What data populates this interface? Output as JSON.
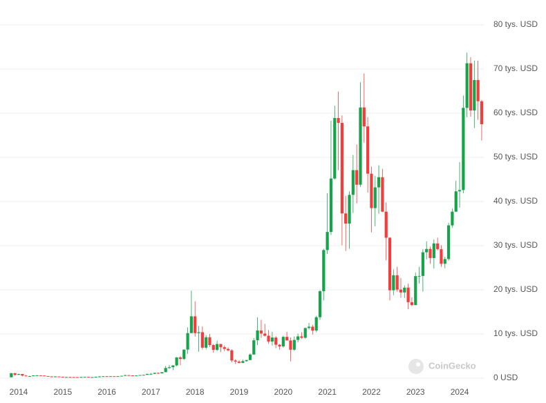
{
  "chart_data": {
    "type": "candlestick",
    "categories": [
      null,
      null,
      "2014",
      null,
      null,
      null,
      null,
      null,
      null,
      null,
      null,
      null,
      null,
      null,
      "2015",
      null,
      null,
      null,
      null,
      null,
      null,
      null,
      null,
      null,
      null,
      null,
      "2016",
      null,
      null,
      null,
      null,
      null,
      null,
      null,
      null,
      null,
      null,
      null,
      "2017",
      null,
      null,
      null,
      null,
      null,
      null,
      null,
      null,
      null,
      null,
      null,
      "2018",
      null,
      null,
      null,
      null,
      null,
      null,
      null,
      null,
      null,
      null,
      null,
      "2019",
      null,
      null,
      null,
      null,
      null,
      null,
      null,
      null,
      null,
      null,
      null,
      "2020",
      null,
      null,
      null,
      null,
      null,
      null,
      null,
      null,
      null,
      null,
      null,
      "2021",
      null,
      null,
      null,
      null,
      null,
      null,
      null,
      null,
      null,
      null,
      null,
      "2022",
      null,
      null,
      null,
      null,
      null,
      null,
      null,
      null,
      null,
      null,
      null,
      "2023",
      null,
      null,
      null,
      null,
      null,
      null,
      null,
      null,
      null,
      null,
      null,
      "2024",
      null,
      null,
      null,
      null,
      null,
      null
    ],
    "open": [
      200,
      1130,
      750,
      935,
      570,
      450,
      450,
      630,
      640,
      590,
      480,
      390,
      340,
      380,
      320,
      220,
      250,
      245,
      235,
      230,
      265,
      285,
      230,
      237,
      315,
      378,
      430,
      370,
      437,
      416,
      448,
      531,
      673,
      624,
      575,
      609,
      700,
      742,
      964,
      970,
      1190,
      1080,
      1350,
      2300,
      2480,
      2875,
      4700,
      4340,
      6470,
      10200,
      14000,
      10200,
      10400,
      6900,
      9250,
      7500,
      6400,
      7730,
      7000,
      6625,
      6300,
      4000,
      3740,
      3460,
      3850,
      4100,
      5350,
      8570,
      10800,
      10100,
      9600,
      8300,
      9200,
      7570,
      7190,
      9350,
      8540,
      6440,
      8660,
      9460,
      9140,
      11350,
      11650,
      10780,
      13800,
      19700,
      29000,
      33100,
      45200,
      58900,
      57800,
      37300,
      35000,
      41500,
      47100,
      43800,
      61300,
      57000,
      46300,
      38500,
      43200,
      45500,
      37700,
      31800,
      19900,
      23300,
      20050,
      19400,
      20500,
      17200,
      16550,
      23100,
      23150,
      28500,
      29250,
      27200,
      30500,
      29200,
      25900,
      26970,
      34600,
      37700,
      42300,
      42600,
      61200,
      71300,
      60600,
      67500,
      62700
    ],
    "high": [
      1160,
      1160,
      1000,
      940,
      720,
      540,
      630,
      680,
      650,
      600,
      490,
      420,
      460,
      390,
      320,
      270,
      300,
      260,
      250,
      270,
      320,
      285,
      245,
      335,
      500,
      470,
      460,
      440,
      440,
      470,
      550,
      780,
      700,
      630,
      620,
      720,
      760,
      970,
      1160,
      1210,
      1290,
      1350,
      2760,
      3000,
      2950,
      4750,
      5000,
      6470,
      11500,
      19800,
      17400,
      11800,
      11700,
      9750,
      10000,
      7750,
      8500,
      7760,
      7400,
      7000,
      6550,
      4300,
      4100,
      4200,
      4150,
      5600,
      9100,
      13800,
      13200,
      12300,
      10900,
      10500,
      9500,
      7700,
      9600,
      10500,
      9200,
      9450,
      10100,
      10400,
      11450,
      12500,
      12100,
      14100,
      19900,
      29300,
      41900,
      58300,
      61700,
      64900,
      59500,
      41300,
      42300,
      50500,
      52900,
      67000,
      69000,
      59100,
      47900,
      45800,
      48200,
      47400,
      39800,
      31900,
      24600,
      25200,
      22700,
      21000,
      21400,
      18300,
      23900,
      25200,
      29200,
      31000,
      29800,
      31400,
      31800,
      30100,
      27500,
      35200,
      38400,
      44700,
      48900,
      64000,
      73700,
      72700,
      71900,
      71900,
      63000
    ],
    "low": [
      200,
      520,
      730,
      420,
      440,
      340,
      440,
      560,
      570,
      450,
      360,
      280,
      320,
      310,
      170,
      210,
      240,
      215,
      225,
      220,
      255,
      200,
      225,
      235,
      315,
      350,
      360,
      370,
      400,
      410,
      440,
      530,
      610,
      530,
      570,
      600,
      690,
      740,
      750,
      920,
      900,
      1060,
      1350,
      2100,
      1800,
      2700,
      2950,
      4150,
      5500,
      10200,
      9400,
      6000,
      6500,
      6500,
      7050,
      5750,
      6100,
      5900,
      6100,
      6100,
      3600,
      3200,
      3350,
      3400,
      3730,
      4080,
      5350,
      7500,
      9100,
      9400,
      7800,
      7400,
      6800,
      6450,
      6900,
      8500,
      3800,
      6200,
      8100,
      8900,
      8950,
      11000,
      9900,
      10400,
      13200,
      17600,
      28100,
      32400,
      45000,
      47100,
      30100,
      28800,
      29300,
      37400,
      39600,
      43300,
      53300,
      42000,
      33000,
      34400,
      37200,
      37600,
      26700,
      17600,
      18800,
      19600,
      18200,
      18200,
      15600,
      16300,
      16500,
      21400,
      19600,
      26900,
      25900,
      24800,
      28900,
      25200,
      24900,
      26600,
      34100,
      37600,
      38600,
      41900,
      59100,
      59200,
      56600,
      58500,
      53800
    ],
    "close": [
      1130,
      750,
      935,
      570,
      450,
      450,
      630,
      640,
      590,
      480,
      390,
      340,
      380,
      320,
      220,
      250,
      245,
      235,
      230,
      265,
      285,
      230,
      237,
      315,
      378,
      430,
      370,
      437,
      416,
      448,
      531,
      673,
      624,
      575,
      609,
      700,
      742,
      964,
      970,
      1190,
      1080,
      1350,
      2300,
      2480,
      2875,
      4700,
      4340,
      6470,
      10200,
      14000,
      10200,
      10400,
      6900,
      9250,
      7500,
      6400,
      7730,
      7000,
      6625,
      6300,
      4000,
      3740,
      3460,
      3850,
      4100,
      5350,
      8570,
      10800,
      10100,
      9600,
      8300,
      9200,
      7570,
      7190,
      9350,
      8540,
      6440,
      8660,
      9460,
      9140,
      11350,
      11650,
      10780,
      13800,
      19700,
      29000,
      33100,
      45200,
      58900,
      57800,
      37300,
      35000,
      41500,
      47100,
      43800,
      61300,
      57000,
      46300,
      38500,
      43200,
      45500,
      37700,
      31800,
      19900,
      23300,
      20050,
      19400,
      20500,
      17200,
      16550,
      23100,
      23150,
      28500,
      29250,
      27200,
      30500,
      29200,
      25900,
      26970,
      34600,
      37700,
      42300,
      42600,
      61200,
      71300,
      60600,
      67500,
      62700,
      57500
    ],
    "up_color": "#16a34a",
    "down_color": "#f23d3d",
    "ylim": [
      0,
      80000
    ],
    "yticks": [
      {
        "value": 0,
        "label": "0 USD"
      },
      {
        "value": 10000,
        "label": "10 tys. USD"
      },
      {
        "value": 20000,
        "label": "20 tys. USD"
      },
      {
        "value": 30000,
        "label": "30 tys. USD"
      },
      {
        "value": 40000,
        "label": "40 tys. USD"
      },
      {
        "value": 50000,
        "label": "50 tys. USD"
      },
      {
        "value": 60000,
        "label": "60 tys. USD"
      },
      {
        "value": 70000,
        "label": "70 tys. USD"
      },
      {
        "value": 80000,
        "label": "80 tys. USD"
      }
    ],
    "grid": true,
    "watermark": "CoinGecko"
  }
}
